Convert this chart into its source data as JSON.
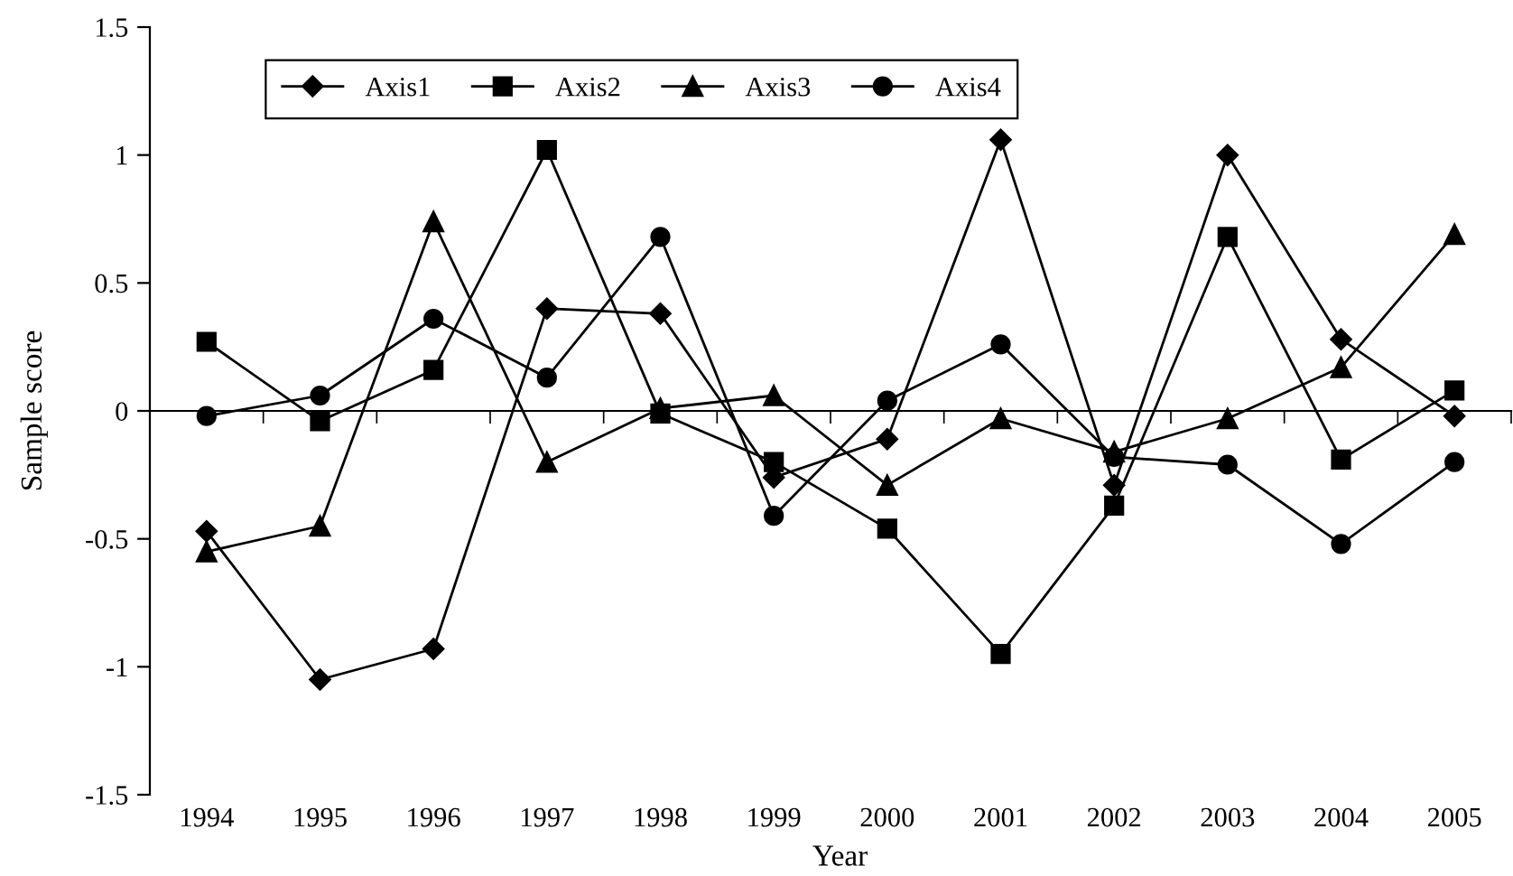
{
  "chart_data": {
    "type": "line",
    "xlabel": "Year",
    "ylabel": "Sample score",
    "categories": [
      "1994",
      "1995",
      "1996",
      "1997",
      "1998",
      "1999",
      "2000",
      "2001",
      "2002",
      "2003",
      "2004",
      "2005"
    ],
    "ylim": [
      -1.5,
      1.5
    ],
    "yticks": [
      -1.5,
      -1,
      -0.5,
      0,
      0.5,
      1,
      1.5
    ],
    "legend": "top left",
    "series": [
      {
        "name": "Axis1",
        "color": "#000000",
        "marker": "diamond",
        "values": [
          -0.47,
          -1.05,
          -0.93,
          0.4,
          0.38,
          -0.26,
          -0.11,
          1.06,
          -0.29,
          1.0,
          0.28,
          -0.02
        ]
      },
      {
        "name": "Axis2",
        "color": "#000000",
        "marker": "square",
        "values": [
          0.27,
          -0.04,
          0.16,
          1.02,
          -0.01,
          -0.2,
          -0.46,
          -0.95,
          -0.37,
          0.68,
          -0.19,
          0.08
        ]
      },
      {
        "name": "Axis3",
        "color": "#000000",
        "marker": "triangle",
        "values": [
          -0.55,
          -0.45,
          0.74,
          -0.2,
          0.01,
          0.06,
          -0.29,
          -0.03,
          -0.16,
          -0.03,
          0.17,
          0.69
        ]
      },
      {
        "name": "Axis4",
        "color": "#000000",
        "marker": "circle",
        "values": [
          -0.02,
          0.06,
          0.36,
          0.13,
          0.68,
          -0.41,
          0.04,
          0.26,
          -0.18,
          -0.21,
          -0.52,
          -0.2
        ]
      }
    ]
  }
}
